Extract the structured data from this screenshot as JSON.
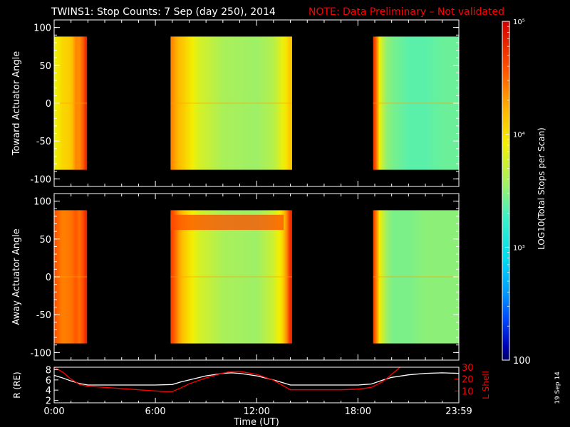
{
  "title": "TWINS1: Stop Counts:  7 Sep (day 250), 2014",
  "note": "NOTE: Data Preliminary – Not validated",
  "date_stamp": "19 Sep 14",
  "colors": {
    "background": "#000000",
    "frame": "#ffffff",
    "note": "#ff0000",
    "r_line": "#ffffff",
    "l_line": "#ff0000"
  },
  "chart_data": [
    {
      "type": "heatmap",
      "panel": "toward",
      "ylabel": "Toward Actuator Angle",
      "ylim": [
        -110,
        110
      ],
      "yticks": [
        100,
        50,
        0,
        -50,
        -100
      ],
      "angle_range": [
        -88,
        88
      ],
      "x_unit": "hours UT",
      "xlim": [
        0,
        23.983
      ],
      "data_segments": [
        [
          -0.35,
          1.95
        ],
        [
          6.9,
          14.1
        ],
        [
          18.9,
          23.983
        ]
      ],
      "log_counts_profile": {
        "hours": [
          -0.35,
          -0.2,
          0.1,
          0.5,
          1.0,
          1.4,
          1.6,
          1.75,
          1.9,
          6.9,
          7.1,
          7.5,
          8.0,
          8.5,
          10.0,
          12.0,
          13.0,
          13.5,
          13.8,
          14.0,
          14.1,
          18.9,
          19.0,
          19.1,
          19.3,
          19.6,
          20.0,
          21.0,
          22.0,
          23.0,
          23.983
        ],
        "log10": [
          3.75,
          3.8,
          3.9,
          4.05,
          4.1,
          4.5,
          4.2,
          4.7,
          4.8,
          4.45,
          4.3,
          4.15,
          4.0,
          3.8,
          3.6,
          3.55,
          3.65,
          3.85,
          4.0,
          4.15,
          4.1,
          4.8,
          4.9,
          4.4,
          3.85,
          3.55,
          3.45,
          3.35,
          3.35,
          3.4,
          3.4
        ]
      }
    },
    {
      "type": "heatmap",
      "panel": "away",
      "ylabel": "Away Actuator Angle",
      "ylim": [
        -110,
        110
      ],
      "yticks": [
        100,
        50,
        0,
        -50,
        -100
      ],
      "angle_range": [
        -88,
        88
      ],
      "x_unit": "hours UT",
      "xlim": [
        0,
        23.983
      ],
      "data_segments": [
        [
          -0.35,
          1.95
        ],
        [
          6.9,
          14.1
        ],
        [
          18.9,
          23.983
        ]
      ],
      "log_counts_profile": {
        "hours": [
          -0.35,
          -0.2,
          0.1,
          0.5,
          1.0,
          1.4,
          1.6,
          1.75,
          1.9,
          6.9,
          7.1,
          7.5,
          8.0,
          8.5,
          10.0,
          12.0,
          13.0,
          13.5,
          13.8,
          14.0,
          14.1,
          18.9,
          19.0,
          19.1,
          19.3,
          19.6,
          20.0,
          21.0,
          22.0,
          23.0,
          23.983
        ],
        "log10": [
          4.6,
          4.7,
          4.55,
          4.4,
          4.45,
          4.6,
          4.3,
          4.75,
          4.8,
          4.7,
          4.55,
          4.2,
          4.0,
          3.8,
          3.6,
          3.55,
          3.75,
          4.0,
          4.4,
          4.8,
          4.8,
          4.75,
          4.85,
          4.3,
          3.9,
          3.6,
          3.45,
          3.45,
          3.5,
          3.5,
          3.5
        ]
      },
      "bright_band": {
        "angle_range": [
          62,
          82
        ],
        "hours": [
          6.9,
          13.6
        ],
        "log10": 4.6
      }
    },
    {
      "type": "line",
      "panel": "orbit",
      "xlabel": "Time (UT)",
      "xticklabels": [
        "0:00",
        "6:00",
        "12:00",
        "18:00",
        "23:59"
      ],
      "xticks_hours": [
        0,
        6,
        12,
        18,
        23.983
      ],
      "xlim": [
        0,
        23.983
      ],
      "ylabel_left": "R (RE)",
      "ylim_left": [
        1.5,
        8.5
      ],
      "yticks_left": [
        2,
        4,
        6,
        8
      ],
      "ylabel_right": "L Shell",
      "ylim_right": [
        0,
        30
      ],
      "yticks_right": [
        10,
        20,
        30
      ],
      "series": [
        {
          "name": "R",
          "axis": "left",
          "color": "#ffffff",
          "x": [
            -0.3,
            0.0,
            0.5,
            1.0,
            1.5,
            2.0,
            3.0,
            4.0,
            5.0,
            6.0,
            7.0,
            7.5,
            8.0,
            9.0,
            10.0,
            10.5,
            11.0,
            12.0,
            13.0,
            13.5,
            14.0,
            15.0,
            16.0,
            17.0,
            18.0,
            18.8,
            19.5,
            20.0,
            21.0,
            22.0,
            23.0,
            23.983
          ],
          "y": [
            7.0,
            6.9,
            6.4,
            5.8,
            5.3,
            5.0,
            5.0,
            5.0,
            5.0,
            5.0,
            5.1,
            5.6,
            6.0,
            6.8,
            7.3,
            7.4,
            7.3,
            6.8,
            6.0,
            5.5,
            5.0,
            5.0,
            5.0,
            5.0,
            5.0,
            5.2,
            6.0,
            6.5,
            7.0,
            7.3,
            7.4,
            7.3
          ]
        },
        {
          "name": "L Shell",
          "axis": "right",
          "color": "#ff0000",
          "x": [
            0.0,
            0.5,
            1.0,
            1.5,
            2.0,
            3.0,
            4.0,
            5.0,
            6.0,
            6.5,
            7.0,
            7.5,
            8.0,
            9.0,
            10.0,
            10.5,
            11.0,
            12.0,
            13.0,
            13.5,
            14.0,
            15.0,
            16.0,
            17.0,
            18.0,
            18.8,
            19.5,
            20.0,
            20.5
          ],
          "y": [
            30.0,
            26.0,
            20.0,
            15.5,
            14.0,
            13.0,
            12.0,
            11.0,
            10.0,
            9.5,
            9.5,
            12.5,
            16.0,
            21.0,
            25.0,
            26.5,
            26.5,
            24.0,
            19.0,
            15.0,
            11.0,
            11.0,
            11.0,
            11.0,
            11.5,
            13.0,
            18.0,
            24.0,
            30.0
          ]
        }
      ]
    }
  ],
  "colorbar": {
    "ylabel": "LOG10(Total Stops per Scan)",
    "log_range": [
      2,
      5
    ],
    "tick_labels": [
      "10⁵",
      "10⁴",
      "10³",
      "100"
    ],
    "tick_log10": [
      5,
      4,
      3,
      2
    ]
  }
}
